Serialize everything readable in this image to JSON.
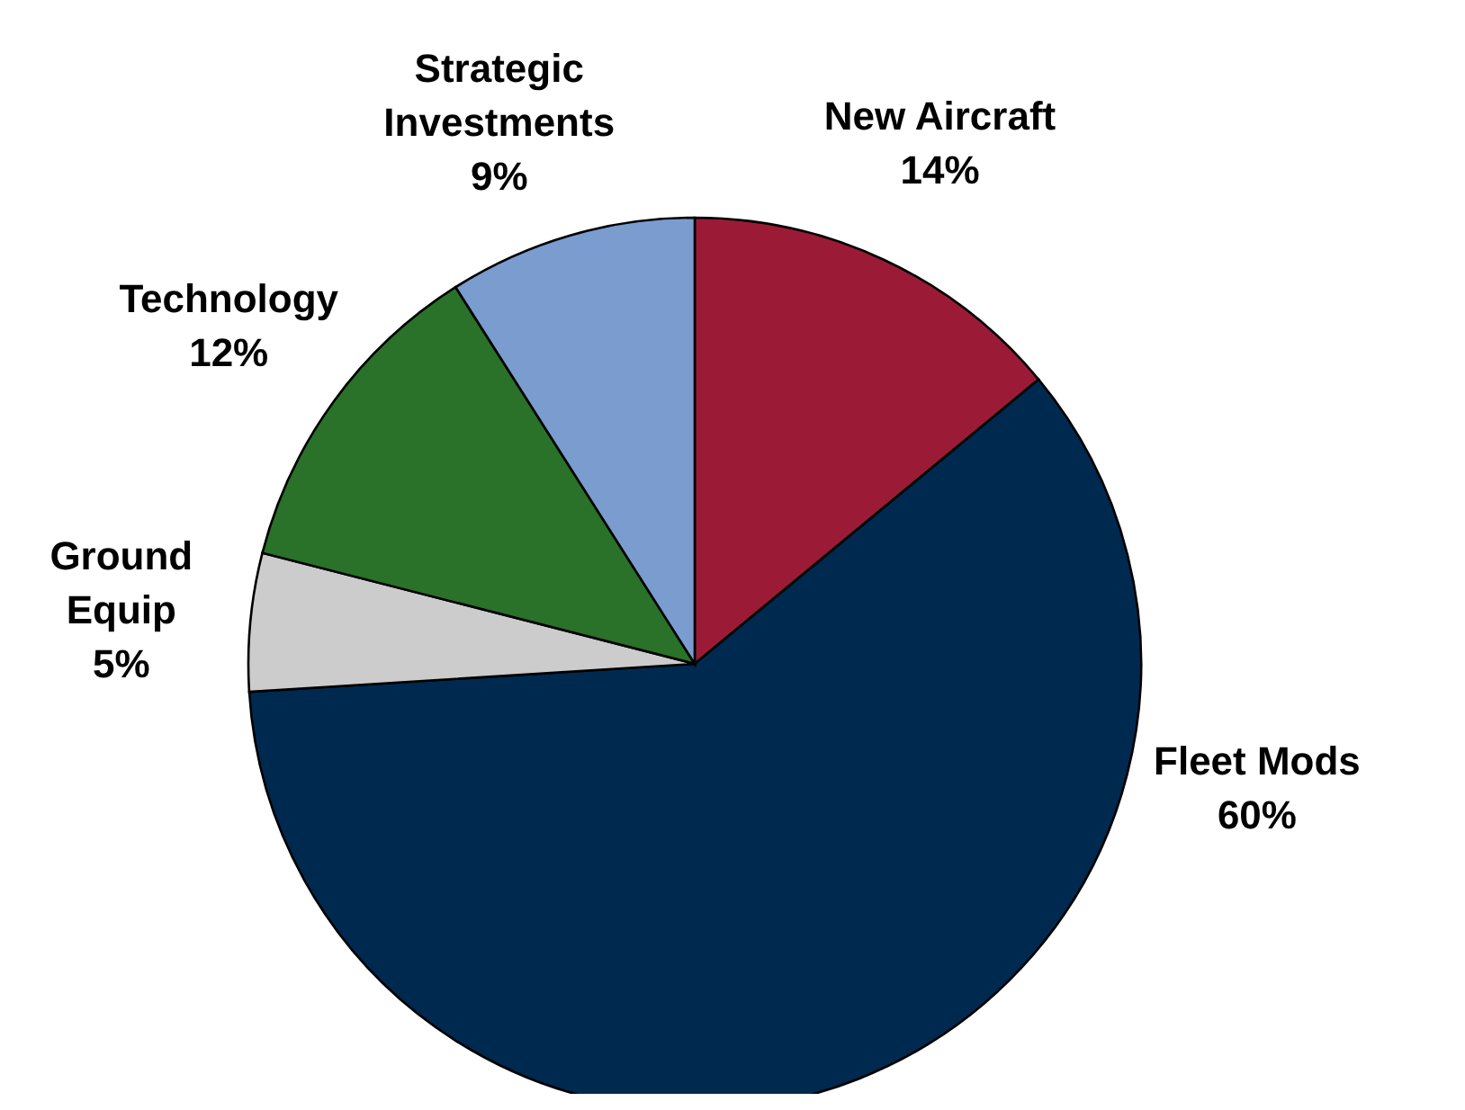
{
  "chart_data": {
    "type": "pie",
    "categories": [
      "New Aircraft",
      "Fleet Mods",
      "Ground Equip",
      "Technology",
      "Strategic Investments"
    ],
    "values": [
      14,
      60,
      5,
      12,
      9
    ],
    "colors": [
      "#9b1b36",
      "#00294f",
      "#cccccc",
      "#2a7129",
      "#7a9ccf"
    ],
    "value_labels": [
      "14%",
      "60%",
      "5%",
      "12%",
      "9%"
    ]
  }
}
